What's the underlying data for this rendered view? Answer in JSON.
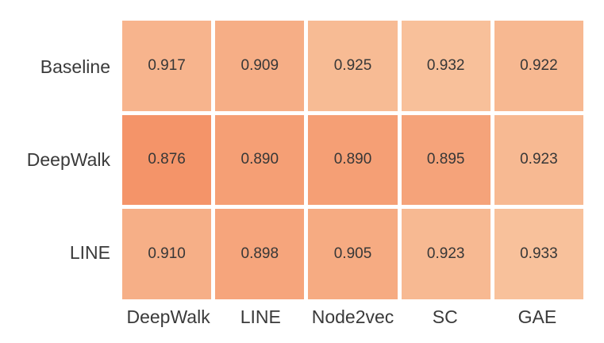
{
  "chart_data": {
    "type": "heatmap",
    "row_labels": [
      "Baseline",
      "DeepWalk",
      "LINE"
    ],
    "col_labels": [
      "DeepWalk",
      "LINE",
      "Node2vec",
      "SC",
      "GAE"
    ],
    "values": [
      [
        0.917,
        0.909,
        0.925,
        0.932,
        0.922
      ],
      [
        0.876,
        0.89,
        0.89,
        0.895,
        0.923
      ],
      [
        0.91,
        0.898,
        0.905,
        0.923,
        0.933
      ]
    ],
    "decimals": 3,
    "colormap": {
      "vmin": 0.876,
      "vmax": 0.933,
      "min_color": "#f49469",
      "max_color": "#f8c19b"
    },
    "cell_gap_color": "#ffffff",
    "background_color": "#ffffff",
    "text_color": "#3a3a3a",
    "legend": "none",
    "grid": "off",
    "title": "",
    "xlabel": "",
    "ylabel": ""
  }
}
